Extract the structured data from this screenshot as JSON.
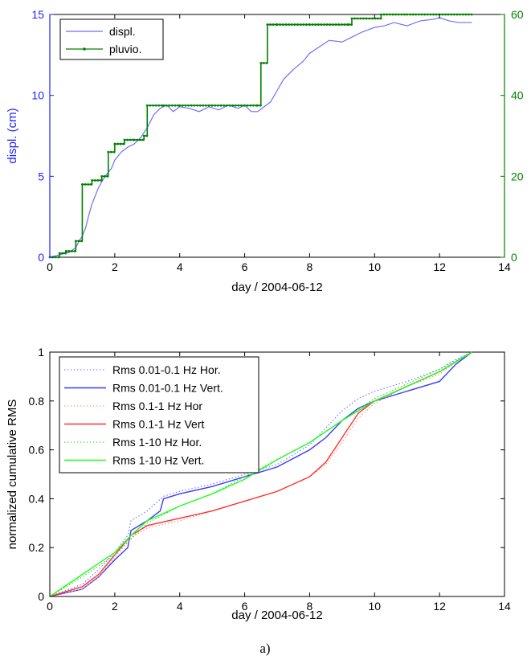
{
  "caption": "a)",
  "chart_data": [
    {
      "type": "line",
      "xlabel": "day / 2004-06-12",
      "ylabel": "displ. (cm)",
      "ylabel_right": "",
      "xlim": [
        0,
        14
      ],
      "ylim": [
        0,
        15
      ],
      "ylim_right": [
        0,
        60
      ],
      "xticks": [
        "0",
        "2",
        "4",
        "6",
        "8",
        "10",
        "12",
        "14"
      ],
      "yticks": [
        "0",
        "5",
        "10",
        "15"
      ],
      "yticks_right": [
        "0",
        "20",
        "40",
        "60"
      ],
      "legend_position": "top-left",
      "colors": {
        "left_axis": "#1f1fff",
        "right_axis": "#008000"
      },
      "series": [
        {
          "name": "displ.",
          "axis": "left",
          "color": "#6f6fff",
          "style": "solid",
          "x": [
            0,
            0.2,
            0.4,
            0.6,
            0.8,
            0.9,
            1.0,
            1.1,
            1.2,
            1.3,
            1.4,
            1.5,
            1.7,
            1.9,
            2.0,
            2.2,
            2.4,
            2.6,
            2.8,
            3.0,
            3.2,
            3.4,
            3.6,
            3.8,
            4.0,
            4.3,
            4.6,
            4.9,
            5.2,
            5.5,
            5.8,
            6.0,
            6.2,
            6.4,
            6.6,
            6.8,
            7.0,
            7.2,
            7.5,
            7.8,
            8.0,
            8.3,
            8.6,
            9.0,
            9.3,
            9.6,
            10.0,
            10.3,
            10.6,
            11.0,
            11.4,
            11.8,
            12.0,
            12.3,
            12.6,
            13.0
          ],
          "y": [
            0,
            0.1,
            0.2,
            0.3,
            0.6,
            1.0,
            1.3,
            1.8,
            2.6,
            3.3,
            3.8,
            4.3,
            5.0,
            5.5,
            6.0,
            6.5,
            6.8,
            7.0,
            7.4,
            8.0,
            8.8,
            9.2,
            9.4,
            9.0,
            9.3,
            9.2,
            9.0,
            9.3,
            9.1,
            9.4,
            9.2,
            9.4,
            9.0,
            9.0,
            9.3,
            9.6,
            10.3,
            11.0,
            11.6,
            12.1,
            12.6,
            13.0,
            13.4,
            13.3,
            13.6,
            13.9,
            14.2,
            14.3,
            14.5,
            14.3,
            14.6,
            14.7,
            14.8,
            14.6,
            14.5,
            14.5
          ]
        },
        {
          "name": "pluvio.",
          "axis": "right",
          "color": "#008000",
          "style": "step-marker",
          "x": [
            0,
            0.3,
            0.5,
            0.8,
            1.0,
            1.3,
            1.6,
            1.8,
            2.0,
            2.3,
            2.6,
            2.9,
            3.0,
            3.5,
            4.0,
            5.0,
            6.0,
            6.4,
            6.5,
            6.7,
            7.0,
            8.0,
            9.2,
            9.3,
            10.1,
            10.2,
            11.0,
            12.0,
            13.0
          ],
          "y": [
            0,
            1,
            1.5,
            4,
            18,
            19,
            20,
            26,
            28,
            29,
            29,
            30,
            37.5,
            37.5,
            37.5,
            37.5,
            37.5,
            37.5,
            48,
            57.5,
            57.5,
            57.5,
            57.5,
            59,
            59,
            60,
            60,
            60,
            60
          ]
        }
      ]
    },
    {
      "type": "line",
      "xlabel": "day / 2004-06-12",
      "ylabel": "normalized cumulative RMS",
      "xlim": [
        0,
        14
      ],
      "ylim": [
        0,
        1
      ],
      "xticks": [
        "0",
        "2",
        "4",
        "6",
        "8",
        "10",
        "12",
        "14"
      ],
      "yticks": [
        "0",
        "0.2",
        "0.4",
        "0.6",
        "0.8",
        "1"
      ],
      "legend_position": "top-left",
      "series": [
        {
          "name": "Rms 0.01-0.1 Hz Hor.",
          "color": "#6f6fff",
          "style": "dotted",
          "x": [
            0,
            1,
            1.5,
            2,
            2.4,
            2.5,
            3,
            3.5,
            4,
            5,
            6,
            7,
            8,
            8.5,
            9,
            9.5,
            10,
            11,
            12,
            12.5,
            13
          ],
          "y": [
            0,
            0.05,
            0.11,
            0.18,
            0.25,
            0.31,
            0.35,
            0.41,
            0.43,
            0.46,
            0.5,
            0.54,
            0.62,
            0.69,
            0.76,
            0.81,
            0.84,
            0.88,
            0.93,
            0.97,
            1.0
          ]
        },
        {
          "name": "Rms 0.01-0.1 Hz Vert.",
          "color": "#3a3aff",
          "style": "solid",
          "x": [
            0,
            1,
            1.5,
            2,
            2.4,
            2.5,
            3,
            3.4,
            3.5,
            4,
            5,
            6,
            7,
            8,
            8.5,
            9,
            9.5,
            10,
            11,
            12,
            12.5,
            13
          ],
          "y": [
            0,
            0.03,
            0.08,
            0.15,
            0.2,
            0.27,
            0.31,
            0.35,
            0.4,
            0.42,
            0.45,
            0.49,
            0.53,
            0.6,
            0.65,
            0.72,
            0.77,
            0.8,
            0.84,
            0.88,
            0.95,
            1.0
          ]
        },
        {
          "name": "Rms 0.1-1 Hz Hor",
          "color": "#ff8080",
          "style": "dotted",
          "x": [
            0,
            1,
            1.5,
            2,
            2.5,
            3,
            4,
            5,
            6,
            7,
            8,
            8.5,
            9,
            9.5,
            10,
            11,
            12,
            12.5,
            13
          ],
          "y": [
            0,
            0.03,
            0.08,
            0.16,
            0.24,
            0.28,
            0.31,
            0.35,
            0.39,
            0.43,
            0.49,
            0.54,
            0.63,
            0.73,
            0.79,
            0.86,
            0.91,
            0.96,
            1.0
          ]
        },
        {
          "name": "Rms 0.1-1 Hz Vert",
          "color": "#ff3030",
          "style": "solid",
          "x": [
            0,
            1,
            1.5,
            2,
            2.5,
            3,
            4,
            5,
            6,
            7,
            8,
            8.5,
            9,
            9.5,
            10,
            11,
            12,
            12.5,
            13
          ],
          "y": [
            0,
            0.04,
            0.09,
            0.17,
            0.25,
            0.29,
            0.32,
            0.35,
            0.39,
            0.43,
            0.49,
            0.55,
            0.65,
            0.75,
            0.8,
            0.86,
            0.92,
            0.96,
            1.0
          ]
        },
        {
          "name": "Rms 1-10 Hz Hor.",
          "color": "#30d030",
          "style": "dotted",
          "x": [
            0,
            1,
            2,
            3,
            4,
            5,
            6,
            7,
            8,
            9,
            10,
            11,
            12,
            13
          ],
          "y": [
            0,
            0.08,
            0.17,
            0.3,
            0.37,
            0.42,
            0.49,
            0.56,
            0.63,
            0.72,
            0.81,
            0.87,
            0.93,
            1.0
          ]
        },
        {
          "name": "Rms 1-10 Hz Vert.",
          "color": "#20ff20",
          "style": "solid",
          "x": [
            0,
            1,
            2,
            2.5,
            3,
            4,
            5,
            6,
            7,
            8,
            9,
            10,
            11,
            12,
            13
          ],
          "y": [
            0,
            0.09,
            0.18,
            0.25,
            0.31,
            0.37,
            0.42,
            0.48,
            0.56,
            0.63,
            0.72,
            0.8,
            0.86,
            0.92,
            1.0
          ]
        }
      ]
    }
  ]
}
